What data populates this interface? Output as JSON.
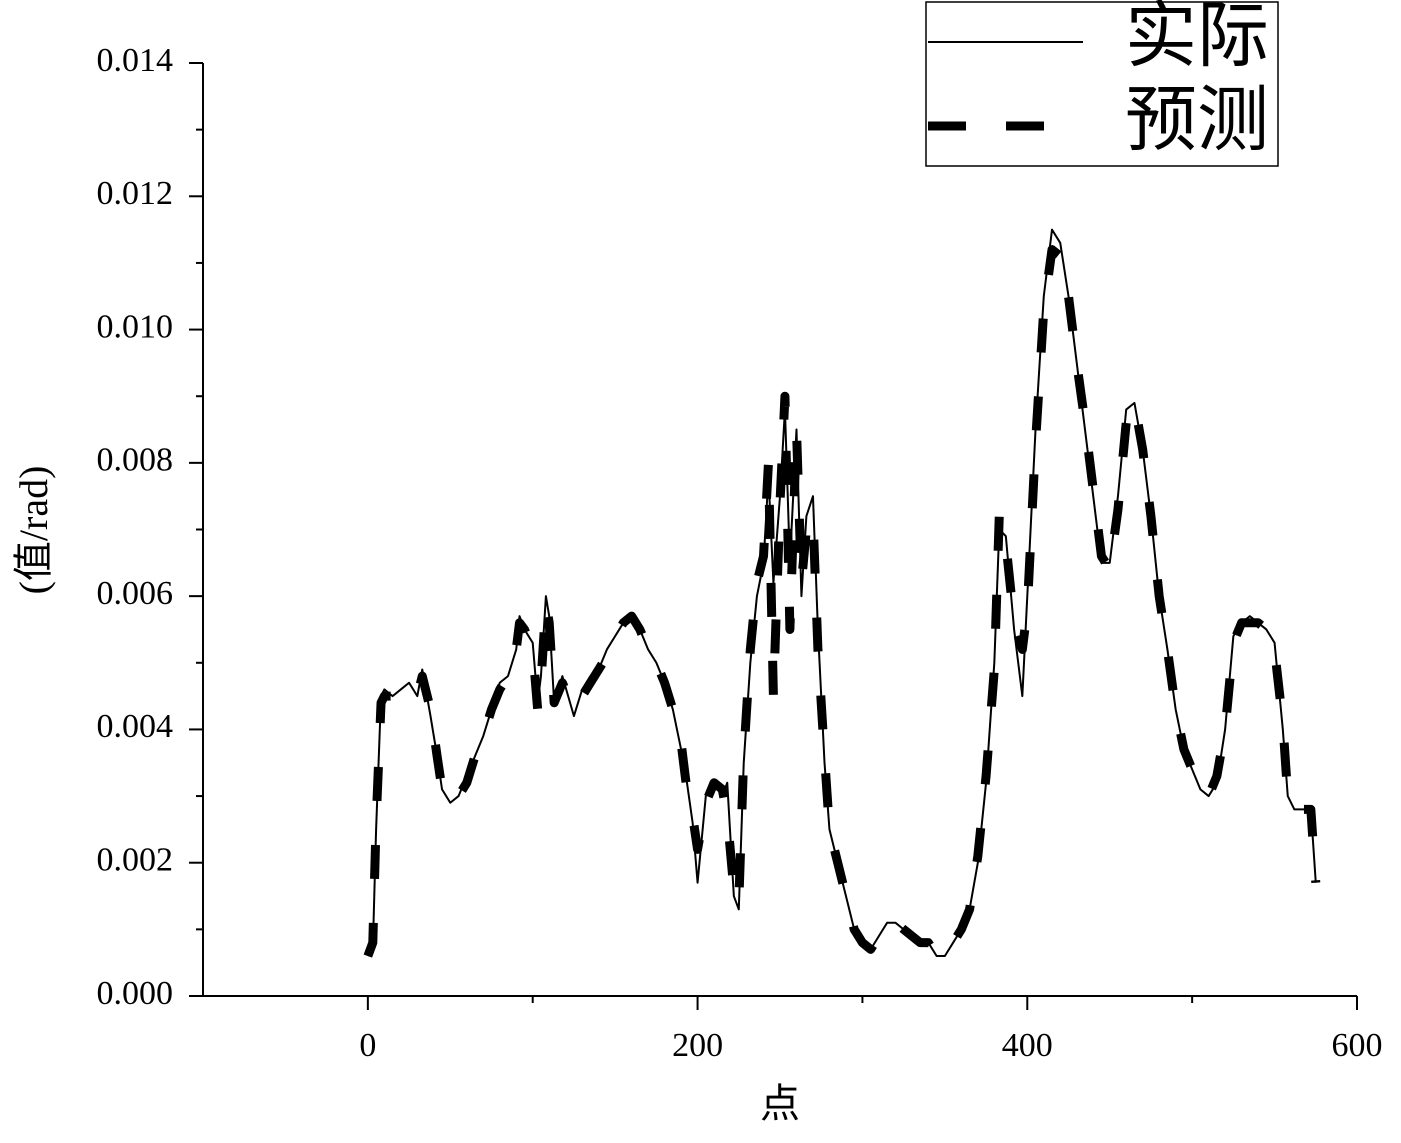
{
  "chart_data": {
    "type": "line",
    "xlabel": "点",
    "ylabel": "(值/rad)",
    "xlim": [
      -100,
      600
    ],
    "xticks": [
      0,
      200,
      400,
      600
    ],
    "ylim": [
      0,
      0.014
    ],
    "yticks": [
      {
        "value": 0,
        "label": "0.000"
      },
      {
        "value": 0.002,
        "label": "0.002"
      },
      {
        "value": 0.004,
        "label": "0.004"
      },
      {
        "value": 0.006,
        "label": "0.006"
      },
      {
        "value": 0.008,
        "label": "0.008"
      },
      {
        "value": 0.01,
        "label": "0.010"
      },
      {
        "value": 0.012,
        "label": "0.012"
      },
      {
        "value": 0.014,
        "label": "0.014"
      }
    ],
    "legend": "upper right",
    "x": [
      0,
      3,
      5,
      8,
      10,
      15,
      20,
      25,
      30,
      33,
      38,
      42,
      45,
      50,
      55,
      60,
      65,
      70,
      75,
      80,
      85,
      90,
      92,
      95,
      100,
      103,
      105,
      108,
      110,
      113,
      118,
      125,
      130,
      135,
      140,
      145,
      150,
      155,
      160,
      165,
      170,
      175,
      180,
      185,
      190,
      193,
      197,
      200,
      205,
      210,
      215,
      218,
      222,
      225,
      228,
      232,
      236,
      240,
      243,
      246,
      250,
      253,
      256,
      260,
      263,
      266,
      270,
      273,
      277,
      280,
      285,
      290,
      295,
      300,
      305,
      310,
      315,
      320,
      325,
      330,
      335,
      340,
      345,
      350,
      355,
      360,
      365,
      370,
      375,
      380,
      383,
      387,
      392,
      397,
      400,
      405,
      410,
      415,
      420,
      425,
      430,
      435,
      440,
      445,
      450,
      455,
      460,
      465,
      470,
      475,
      480,
      485,
      490,
      495,
      500,
      505,
      510,
      515,
      520,
      525,
      530,
      535,
      540,
      545,
      550,
      555,
      558,
      562,
      567,
      572,
      575
    ],
    "series": [
      {
        "name": "实际",
        "color": "#000000",
        "style": "solid",
        "values": [
          0.0006,
          0.0007,
          0.0025,
          0.0045,
          0.0046,
          0.0045,
          0.0046,
          0.0047,
          0.0045,
          0.0049,
          0.0042,
          0.0036,
          0.0031,
          0.0029,
          0.003,
          0.0033,
          0.0036,
          0.0039,
          0.0043,
          0.0047,
          0.0048,
          0.0052,
          0.0057,
          0.0055,
          0.0053,
          0.0044,
          0.0048,
          0.006,
          0.0057,
          0.0044,
          0.0048,
          0.0042,
          0.0046,
          0.0048,
          0.0049,
          0.0052,
          0.0054,
          0.0056,
          0.0057,
          0.0055,
          0.0052,
          0.005,
          0.0047,
          0.0043,
          0.0037,
          0.0033,
          0.0026,
          0.0017,
          0.003,
          0.0032,
          0.003,
          0.0032,
          0.0015,
          0.0013,
          0.0035,
          0.005,
          0.006,
          0.0065,
          0.0078,
          0.0062,
          0.0075,
          0.0088,
          0.0065,
          0.0085,
          0.006,
          0.0072,
          0.0075,
          0.0055,
          0.0035,
          0.0025,
          0.002,
          0.0015,
          0.001,
          0.0008,
          0.0007,
          0.0009,
          0.0011,
          0.0011,
          0.001,
          0.0009,
          0.0008,
          0.0008,
          0.0006,
          0.0006,
          0.0008,
          0.001,
          0.0013,
          0.002,
          0.0032,
          0.005,
          0.007,
          0.0069,
          0.0055,
          0.0045,
          0.006,
          0.0085,
          0.0105,
          0.0115,
          0.0113,
          0.0105,
          0.0095,
          0.0085,
          0.0075,
          0.0065,
          0.0065,
          0.0075,
          0.0088,
          0.0089,
          0.0082,
          0.0072,
          0.006,
          0.0052,
          0.0043,
          0.0037,
          0.0034,
          0.0031,
          0.003,
          0.0032,
          0.004,
          0.0054,
          0.0056,
          0.0057,
          0.0056,
          0.0055,
          0.0053,
          0.004,
          0.003,
          0.0028,
          0.0028,
          0.0028,
          0.0017
        ]
      },
      {
        "name": "预测",
        "color": "#000000",
        "style": "dashed",
        "values": [
          0.0006,
          0.0008,
          0.0026,
          0.0044,
          0.0045,
          0.0045,
          0.0045,
          0.0046,
          0.0045,
          0.0048,
          0.0043,
          0.0036,
          0.0031,
          0.0029,
          0.003,
          0.0032,
          0.0036,
          0.0039,
          0.0043,
          0.0046,
          0.0048,
          0.0052,
          0.0056,
          0.0055,
          0.0052,
          0.0043,
          0.0047,
          0.0059,
          0.0056,
          0.0044,
          0.0047,
          0.0043,
          0.0045,
          0.0047,
          0.0049,
          0.0051,
          0.0054,
          0.0056,
          0.0057,
          0.0055,
          0.0052,
          0.005,
          0.0047,
          0.0043,
          0.0038,
          0.0032,
          0.0027,
          0.0022,
          0.0029,
          0.0032,
          0.0031,
          0.0027,
          0.0016,
          0.0014,
          0.0036,
          0.0052,
          0.0062,
          0.0066,
          0.008,
          0.0045,
          0.0074,
          0.009,
          0.0055,
          0.0085,
          0.0062,
          0.007,
          0.0072,
          0.0052,
          0.0036,
          0.0025,
          0.002,
          0.0015,
          0.001,
          0.0008,
          0.0007,
          0.0009,
          0.0011,
          0.0011,
          0.001,
          0.0009,
          0.0008,
          0.0008,
          0.0006,
          0.0006,
          0.0008,
          0.001,
          0.0013,
          0.0021,
          0.0033,
          0.0049,
          0.0072,
          0.0068,
          0.0056,
          0.0052,
          0.0058,
          0.0083,
          0.0103,
          0.0112,
          0.0111,
          0.0105,
          0.0095,
          0.0086,
          0.0076,
          0.0066,
          0.0064,
          0.0073,
          0.0086,
          0.0089,
          0.0082,
          0.0072,
          0.006,
          0.0052,
          0.0043,
          0.0037,
          0.0034,
          0.0031,
          0.003,
          0.0033,
          0.004,
          0.0053,
          0.0056,
          0.0056,
          0.0056,
          0.0055,
          0.0052,
          0.0041,
          0.003,
          0.0028,
          0.0028,
          0.0028,
          0.0017
        ]
      }
    ]
  }
}
